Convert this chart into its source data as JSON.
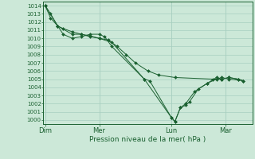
{
  "xlabel": "Pression niveau de la mer( hPa )",
  "ylim": [
    999.5,
    1014.5
  ],
  "yticks": [
    1000,
    1001,
    1002,
    1003,
    1004,
    1005,
    1006,
    1007,
    1008,
    1009,
    1010,
    1011,
    1012,
    1013,
    1014
  ],
  "xtick_labels": [
    "Dim",
    "Mer",
    "Lun",
    "Mar"
  ],
  "xtick_positions": [
    0.0,
    3.0,
    7.0,
    10.0
  ],
  "xlim": [
    -0.1,
    11.5
  ],
  "background_color": "#cce8d8",
  "grid_color": "#a8cfc0",
  "line_color": "#1a6030",
  "series": [
    [
      1014.0,
      1013.0,
      1011.5,
      1011.2,
      1010.8,
      1010.5,
      1010.3,
      1010.0,
      1009.8,
      1009.0,
      1008.0,
      1007.0,
      1006.0,
      1005.5,
      1005.2,
      1005.0,
      1005.0,
      1005.2,
      1005.0,
      1004.8
    ],
    [
      1014.0,
      1012.5,
      1011.5,
      1010.5,
      1010.0,
      1010.2,
      1010.5,
      1010.5,
      1010.2,
      1009.0,
      1005.0,
      1004.8,
      1000.3,
      999.8,
      1001.5,
      1001.8,
      1002.2,
      1003.8,
      1004.5,
      1005.2,
      1005.0,
      1005.2,
      1005.0,
      1004.8
    ],
    [
      1014.0,
      1011.5,
      1010.5,
      1010.5,
      1010.2,
      1010.0,
      1009.5,
      1005.0,
      1000.3,
      999.8,
      1001.5,
      1002.0,
      1003.5,
      1004.5,
      1005.0,
      1005.2,
      1005.0,
      1004.8
    ]
  ],
  "series_x": [
    [
      0.0,
      0.3,
      0.7,
      1.0,
      1.5,
      2.0,
      2.5,
      3.0,
      3.5,
      4.0,
      4.5,
      5.0,
      5.7,
      6.3,
      7.2,
      9.3,
      9.8,
      10.2,
      10.7,
      11.0
    ],
    [
      0.0,
      0.3,
      0.7,
      1.0,
      1.5,
      2.0,
      2.5,
      3.0,
      3.3,
      3.7,
      5.5,
      5.8,
      7.0,
      7.2,
      7.5,
      7.8,
      8.0,
      8.5,
      9.0,
      9.5,
      9.8,
      10.2,
      10.7,
      11.0
    ],
    [
      0.0,
      0.7,
      1.5,
      2.0,
      2.5,
      3.0,
      3.7,
      5.5,
      7.0,
      7.2,
      7.5,
      7.8,
      8.3,
      9.0,
      9.5,
      9.8,
      10.2,
      11.0
    ]
  ],
  "ytick_fontsize": 5,
  "xtick_fontsize": 6,
  "xlabel_fontsize": 6.5,
  "linewidth": 0.7,
  "markersize": 2.0
}
